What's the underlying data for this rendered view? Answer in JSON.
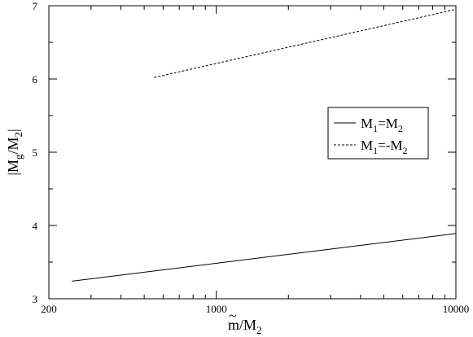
{
  "chart_data": {
    "type": "line",
    "xscale": "log",
    "xlim": [
      200,
      10000
    ],
    "ylim": [
      3,
      7
    ],
    "xticks": [
      {
        "value": 200,
        "label": "200"
      },
      {
        "value": 1000,
        "label": "1000"
      },
      {
        "value": 10000,
        "label": "10000"
      }
    ],
    "yticks": [
      {
        "value": 3,
        "label": "3"
      },
      {
        "value": 4,
        "label": "4"
      },
      {
        "value": 5,
        "label": "5"
      },
      {
        "value": 6,
        "label": "6"
      },
      {
        "value": 7,
        "label": "7"
      }
    ],
    "xlabel": {
      "main": "m",
      "accent": "~",
      "sep": "/M",
      "sub": "2"
    },
    "ylabel": {
      "open": "|M",
      "sub1": "g",
      "mid": "/M",
      "sub2": "2",
      "close": "|"
    },
    "grid": false,
    "legend_position": "right-middle",
    "series": [
      {
        "name": "M1=M2",
        "legend_text": {
          "a": "M",
          "s1": "1",
          "b": "=M",
          "s2": "2"
        },
        "style": "solid",
        "color": "#000000",
        "x": [
          250,
          10000
        ],
        "y": [
          3.24,
          3.89
        ]
      },
      {
        "name": "M1=-M2",
        "legend_text": {
          "a": "M",
          "s1": "1",
          "b": "=-M",
          "s2": "2"
        },
        "style": "dashed",
        "color": "#000000",
        "x": [
          550,
          10000
        ],
        "y": [
          6.02,
          6.95
        ]
      }
    ]
  }
}
